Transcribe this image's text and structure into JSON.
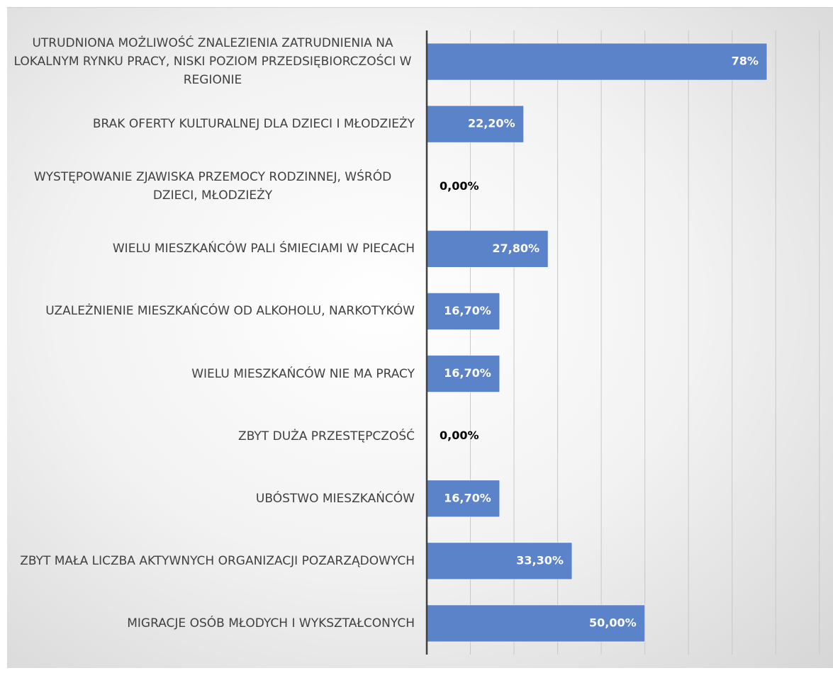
{
  "chart_data": {
    "type": "bar",
    "orientation": "horizontal",
    "categories": [
      "UTRUDNIONA MOŻLIWOŚĆ ZNALEZIENIA ZATRUDNIENIA NA LOKALNYM RYNKU PRACY, NISKI POZIOM PRZEDSIĘBIORCZOŚCI W REGIONIE",
      "BRAK OFERTY KULTURALNEJ DLA DZIECI I MŁODZIEŻY",
      "WYSTĘPOWANIE ZJAWISKA PRZEMOCY RODZINNEJ, WŚRÓD DZIECI, MŁODZIEŻY",
      "WIELU MIESZKAŃCÓW PALI ŚMIECIAMI W PIECACH",
      "UZALEŻNIENIE MIESZKAŃCÓW OD ALKOHOLU, NARKOTYKÓW",
      "WIELU MIESZKAŃCÓW NIE MA PRACY",
      "ZBYT DUŻA PRZESTĘPCZOŚĆ",
      "UBÓSTWO MIESZKAŃCÓW",
      "ZBYT MAŁA LICZBA AKTYWNYCH ORGANIZACJI POZARZĄDOWYCH",
      "MIGRACJE OSÓB MŁODYCH I WYKSZTAŁCONYCH"
    ],
    "values": [
      78,
      22.2,
      0,
      27.8,
      16.7,
      16.7,
      0,
      16.7,
      33.3,
      50
    ],
    "value_labels": [
      "78%",
      "22,20%",
      "0,00%",
      "27,80%",
      "16,70%",
      "16,70%",
      "0,00%",
      "16,70%",
      "33,30%",
      "50,00%"
    ],
    "color": "#5b83c9",
    "xlim": [
      0,
      91.5
    ],
    "xticks": [
      0,
      10,
      20,
      30,
      40,
      50,
      60,
      70,
      80,
      90
    ],
    "grid": true
  }
}
